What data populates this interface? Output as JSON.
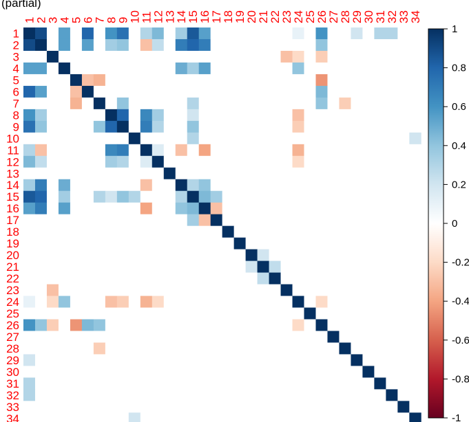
{
  "chart_data": {
    "type": "heatmap",
    "title": "(partial)",
    "variables": [
      "1",
      "2",
      "3",
      "4",
      "5",
      "6",
      "7",
      "8",
      "9",
      "10",
      "11",
      "12",
      "13",
      "14",
      "15",
      "16",
      "17",
      "18",
      "19",
      "20",
      "21",
      "22",
      "23",
      "24",
      "25",
      "26",
      "27",
      "28",
      "29",
      "30",
      "31",
      "32",
      "33",
      "34"
    ],
    "value_range": [
      -1,
      1
    ],
    "colorbar_ticks": [
      "1",
      "0.8",
      "0.6",
      "0.4",
      "0.2",
      "0",
      "-0.2",
      "-0.4",
      "-0.6",
      "-0.8",
      "-1"
    ],
    "label_color": "#ff0000",
    "colors": {
      "positive": "#053061",
      "zero": "#ffffff",
      "negative": "#67001f"
    },
    "diagonal": 1,
    "pairs": [
      [
        1,
        2,
        0.9
      ],
      [
        1,
        4,
        0.55
      ],
      [
        1,
        6,
        0.8
      ],
      [
        1,
        8,
        0.6
      ],
      [
        1,
        9,
        0.75
      ],
      [
        1,
        11,
        0.3
      ],
      [
        1,
        12,
        0.45
      ],
      [
        1,
        14,
        0.35
      ],
      [
        1,
        15,
        0.85
      ],
      [
        1,
        16,
        0.55
      ],
      [
        1,
        24,
        0.1
      ],
      [
        1,
        26,
        0.6
      ],
      [
        1,
        29,
        0.2
      ],
      [
        1,
        31,
        0.3
      ],
      [
        1,
        32,
        0.3
      ],
      [
        2,
        4,
        0.55
      ],
      [
        2,
        6,
        0.55
      ],
      [
        2,
        8,
        0.35
      ],
      [
        2,
        9,
        0.4
      ],
      [
        2,
        11,
        -0.3
      ],
      [
        2,
        12,
        0.25
      ],
      [
        2,
        14,
        0.7
      ],
      [
        2,
        15,
        0.8
      ],
      [
        2,
        16,
        0.7
      ],
      [
        2,
        26,
        0.4
      ],
      [
        3,
        23,
        -0.3
      ],
      [
        3,
        24,
        -0.2
      ],
      [
        3,
        26,
        -0.25
      ],
      [
        4,
        14,
        0.5
      ],
      [
        4,
        15,
        0.35
      ],
      [
        4,
        16,
        0.55
      ],
      [
        4,
        24,
        0.4
      ],
      [
        5,
        6,
        -0.3
      ],
      [
        5,
        7,
        -0.35
      ],
      [
        5,
        26,
        -0.45
      ],
      [
        6,
        26,
        0.45
      ],
      [
        7,
        9,
        0.4
      ],
      [
        7,
        15,
        0.3
      ],
      [
        7,
        26,
        0.4
      ],
      [
        7,
        28,
        -0.25
      ],
      [
        8,
        9,
        0.8
      ],
      [
        8,
        11,
        0.65
      ],
      [
        8,
        12,
        0.35
      ],
      [
        8,
        15,
        0.2
      ],
      [
        8,
        24,
        -0.3
      ],
      [
        9,
        11,
        0.7
      ],
      [
        9,
        12,
        0.3
      ],
      [
        9,
        15,
        0.4
      ],
      [
        9,
        24,
        -0.25
      ],
      [
        10,
        15,
        0.3
      ],
      [
        10,
        34,
        0.2
      ],
      [
        11,
        12,
        0.15
      ],
      [
        11,
        14,
        -0.3
      ],
      [
        11,
        16,
        -0.4
      ],
      [
        11,
        24,
        -0.35
      ],
      [
        12,
        24,
        -0.2
      ],
      [
        14,
        15,
        0.3
      ],
      [
        14,
        16,
        0.4
      ],
      [
        15,
        16,
        0.45
      ],
      [
        15,
        17,
        0.35
      ],
      [
        16,
        17,
        -0.3
      ],
      [
        20,
        21,
        0.2
      ],
      [
        21,
        22,
        0.25
      ],
      [
        24,
        26,
        -0.2
      ]
    ]
  }
}
